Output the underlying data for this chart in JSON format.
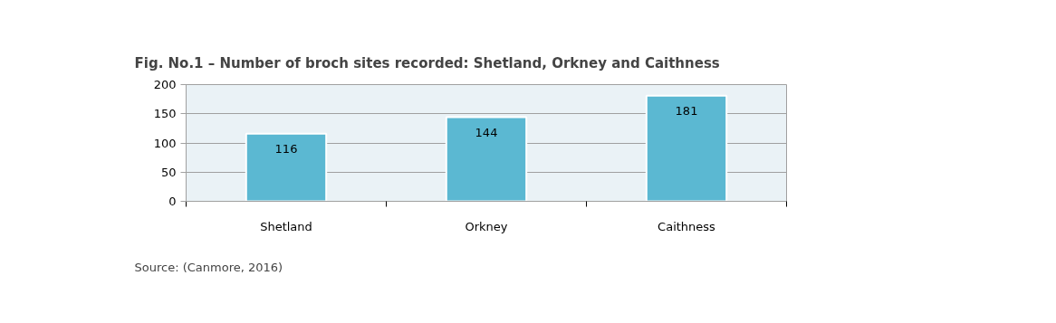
{
  "chart_data": {
    "type": "bar",
    "title": "Fig. No.1 – Number of broch sites recorded: Shetland, Orkney and Caithness",
    "categories": [
      "Shetland",
      "Orkney",
      "Caithness"
    ],
    "values": [
      116,
      144,
      181
    ],
    "color": "#5bb8d2",
    "ylim": [
      0,
      200
    ],
    "yticks": [
      0,
      50,
      100,
      150,
      200
    ],
    "grid": "y",
    "data_labels": true,
    "annotations": [
      "Source: (Canmore, 2016)"
    ]
  }
}
